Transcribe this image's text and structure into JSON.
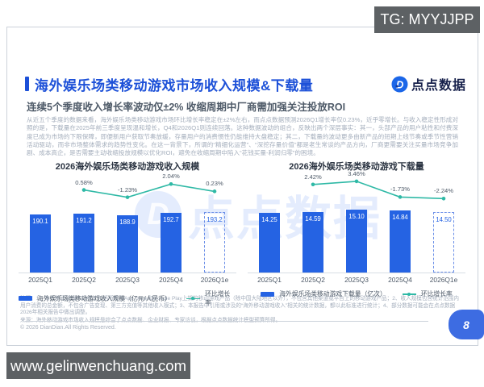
{
  "overlays": {
    "tg_badge": "TG: MYYJJPP",
    "site_badge": "www.gelinwenchuang.com"
  },
  "header": {
    "title": "海外娱乐场类移动游戏市场收入规模&下载量",
    "logo_text": "点点数据",
    "logo_icon": "diandian-d-icon",
    "subtitle": "连续5个季度收入增长率波动仅±2% 收缩周期中厂商需加强关注投放ROI",
    "paragraph": "从近五个季度的数据来看，海外娱乐场类移动游戏市场环比增长率稳定在±2%左右，而点点数据预测2026Q1增长率仅0.23%，近乎零增长。与收入稳定性形成对照的是，下载量在2025年前三季度呈现温和增长，Q4和2026Q1则连续回落。这种数据波动的组合，反映出两个深层事实：其一，头部产品的用户粘性和付费深度已成为市场的下限保障，即便新用户获取节奏放缓，存量用户的消费惯性仍能维持大盘稳定；其二，下载量的波动更多由新产品的短期上线节奏或季节性营销活动驱动，而非市场整体需求的趋势性变化。在这一背景下，所谓的“精细化运营”、“深挖存量价值”都是老生常谈的产品方向，厂商更需要关注买量市场竞争加剧、成本高企，是否需要主动收缩投放规模以优化ROI，避免在收缩周期中陷入“花钱买量-利润归零”的困境。"
  },
  "chart_data": [
    {
      "type": "bar",
      "title": "2026海外娱乐场类移动游戏收入规模",
      "categories": [
        "2025Q1",
        "2025Q2",
        "2025Q3",
        "2025Q4",
        "2026Q1e"
      ],
      "series": [
        {
          "name": "海外娱乐场类移动游戏收入规模（亿元/人民币）",
          "type": "bar",
          "values": [
            190.1,
            191.2,
            188.9,
            192.7,
            193.2
          ],
          "value_labels": [
            "190.1",
            "191.2",
            "188.9",
            "192.7",
            "193.2"
          ]
        },
        {
          "name": "环比增长率",
          "type": "line",
          "values": [
            null,
            0.58,
            -1.23,
            2.04,
            0.23
          ],
          "labels": [
            null,
            "0.58%",
            "-1.23%",
            "2.04%",
            "0.23%"
          ]
        }
      ],
      "ylim": [
        100,
        200
      ],
      "line_ylim": [
        -2.5,
        3.5
      ],
      "forecast_index": 4,
      "grid": false,
      "legend_position": "bottom"
    },
    {
      "type": "bar",
      "title": "2026海外娱乐场类移动游戏下载量",
      "categories": [
        "2025Q1",
        "2025Q2",
        "2025Q3",
        "2025Q4",
        "2026Q1e"
      ],
      "series": [
        {
          "name": "海外娱乐场类移动游戏下载量（亿次）",
          "type": "bar",
          "values": [
            14.25,
            14.59,
            15.1,
            14.84,
            14.5
          ],
          "value_labels": [
            "14.25",
            "14.59",
            "15.10",
            "14.84",
            "14.50"
          ]
        },
        {
          "name": "环比增长率",
          "type": "line",
          "values": [
            null,
            2.42,
            3.46,
            -1.73,
            -2.24
          ],
          "labels": [
            null,
            "2.42%",
            "3.46%",
            "-1.73%",
            "-2.24%"
          ]
        }
      ],
      "ylim": [
        0,
        15.5
      ],
      "line_ylim": [
        -3.5,
        4.5
      ],
      "forecast_index": 4,
      "grid": false,
      "legend_position": "bottom"
    }
  ],
  "footnotes": {
    "note": "注释：1、海外移动游戏市场统计包括所有在App Store和Google Play上架的移动游戏产品（除中国大陆地区以外），不包含其他渠道或平台上的移动游戏产品；2、收入规模包含统计范围内用户消费的总金额，不包含广告变现、第三方充值等其他收入模式；3、本报告中引用或涉及的“海外移动游戏收入”相关的统计数据，都以此标准进行统计；4、部分数据可能会在点点数据2026年相关报告中做出调整。",
    "source": "来源：海外移动游戏市场收入规模是综合了点点数据、企业财报、专家访谈，根据点点数据统计模型预算所得。"
  },
  "footer": {
    "copyright": "© 2026 DianDian.All Rights Reserved.",
    "page_number": "8"
  },
  "watermark": {
    "text": "点点数据",
    "letter": "D"
  },
  "colors": {
    "accent_blue": "#1c50d8",
    "bar_blue": "#2563e3",
    "line_teal": "#2fb9a6",
    "blob_blue": "#3d6ce2",
    "badge_gray": "#5d6164"
  }
}
